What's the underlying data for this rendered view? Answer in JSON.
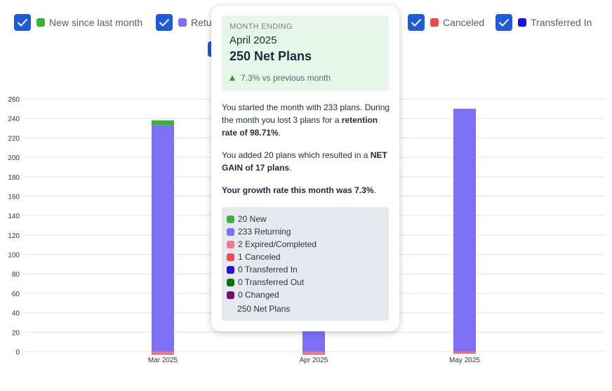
{
  "legend": {
    "items": [
      {
        "label": "New since last month",
        "color": "#3bb33b",
        "checked": true
      },
      {
        "label": "Retu",
        "color": "#7f6ff5",
        "checked": true
      },
      {
        "label": "Canceled",
        "color": "#f04a4a",
        "checked": true
      },
      {
        "label": "Transferred In",
        "color": "#1a10e8",
        "checked": true
      }
    ]
  },
  "chart_data": {
    "type": "bar",
    "stacked": true,
    "categories": [
      "Mar 2025",
      "Apr 2025",
      "May 2025"
    ],
    "ylim": [
      0,
      260
    ],
    "yticks": [
      0,
      20,
      40,
      60,
      80,
      100,
      120,
      140,
      160,
      180,
      200,
      220,
      240,
      260
    ],
    "grid": true,
    "series": [
      {
        "name": "Returning",
        "color": "#7f6ff5",
        "values": [
          233,
          233,
          250
        ]
      },
      {
        "name": "New",
        "color": "#3bb33b",
        "values": [
          5,
          20,
          0
        ]
      },
      {
        "name": "Expired/Completed",
        "color": "#ef7a8a",
        "values": [
          -2,
          -2,
          -1
        ]
      },
      {
        "name": "Canceled",
        "color": "#f04a4a",
        "values": [
          -1,
          -1,
          -1
        ]
      }
    ]
  },
  "tooltip": {
    "eyebrow": "MONTH ENDING",
    "month": "April 2025",
    "net": "250 Net Plans",
    "change": "7.3% vs previous month",
    "p1a": "You started the month with 233 plans. During the month you lost 3 plans for a ",
    "p1b": "retention rate of 98.71%",
    "p1c": ".",
    "p2a": "You added 20 plans which resulted in a ",
    "p2b": "NET GAIN of 17 plans",
    "p2c": ".",
    "p3": "Your growth rate this month was 7.3%",
    "p3c": ".",
    "items": [
      {
        "label": "20 New",
        "color": "#3bb33b"
      },
      {
        "label": "233 Returning",
        "color": "#7f6ff5"
      },
      {
        "label": "2 Expired/Completed",
        "color": "#ef7a8a"
      },
      {
        "label": "1 Canceled",
        "color": "#f04a4a"
      },
      {
        "label": "0 Transferred In",
        "color": "#1a10e8"
      },
      {
        "label": "0 Transferred Out",
        "color": "#0f6e0f"
      },
      {
        "label": "0 Changed",
        "color": "#7a0f78"
      }
    ],
    "net_label": "250 Net Plans"
  }
}
